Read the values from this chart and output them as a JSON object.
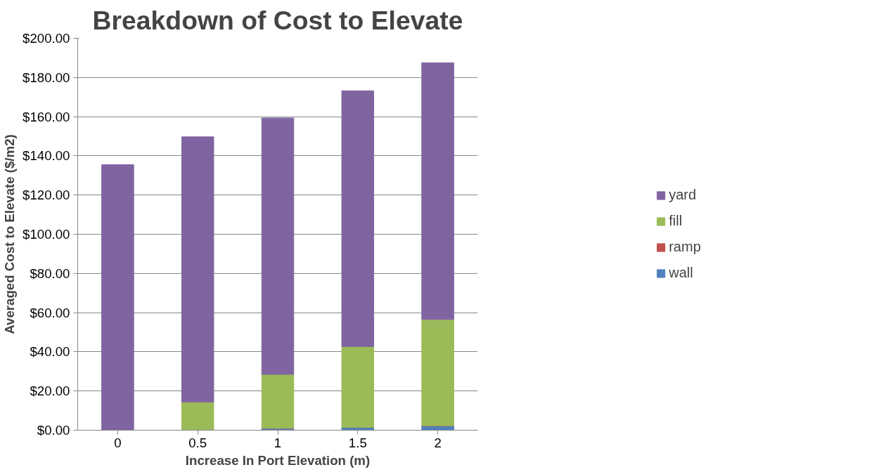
{
  "chart_data": {
    "type": "bar",
    "title": "Breakdown of Cost to Elevate",
    "xlabel": "Increase In Port Elevation (m)",
    "ylabel": "Averaged Cost to Elevate ($/m2)",
    "categories": [
      "0",
      "0.5",
      "1",
      "1.5",
      "2"
    ],
    "stacked": true,
    "series": [
      {
        "name": "wall",
        "color": "#4f81bd",
        "values": [
          0,
          0,
          1.0,
          1.5,
          2.3
        ]
      },
      {
        "name": "ramp",
        "color": "#c0504d",
        "values": [
          0,
          0,
          0,
          0,
          0
        ]
      },
      {
        "name": "fill",
        "color": "#9bbb59",
        "values": [
          0,
          14.4,
          27.5,
          41.2,
          54.2
        ]
      },
      {
        "name": "yard",
        "color": "#8064a2",
        "values": [
          135.5,
          135.3,
          130.8,
          130.5,
          131
        ]
      }
    ],
    "ylim": [
      0,
      200
    ],
    "yticks": [
      {
        "value": 0,
        "label": "$0.00"
      },
      {
        "value": 20,
        "label": "$20.00"
      },
      {
        "value": 40,
        "label": "$40.00"
      },
      {
        "value": 60,
        "label": "$60.00"
      },
      {
        "value": 80,
        "label": "$80.00"
      },
      {
        "value": 100,
        "label": "$100.00"
      },
      {
        "value": 120,
        "label": "$120.00"
      },
      {
        "value": 140,
        "label": "$140.00"
      },
      {
        "value": 160,
        "label": "$160.00"
      },
      {
        "value": 180,
        "label": "$180.00"
      },
      {
        "value": 200,
        "label": "$200.00"
      }
    ],
    "grid": "y",
    "legend": "right"
  }
}
